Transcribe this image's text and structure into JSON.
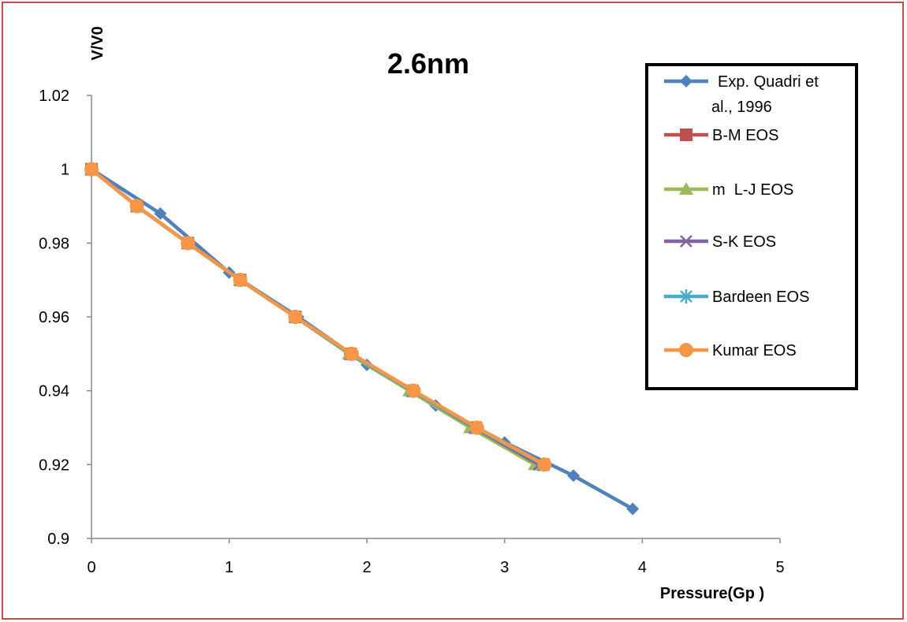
{
  "chart_data": {
    "type": "line",
    "title": "2.6nm",
    "xlabel": "Pressure(Gp )",
    "ylabel": "V/V0",
    "xlim": [
      0,
      5
    ],
    "ylim": [
      0.9,
      1.02
    ],
    "x_ticks": [
      "0",
      "1",
      "2",
      "3",
      "4",
      "5"
    ],
    "y_ticks": [
      "0.9",
      "0.92",
      "0.94",
      "0.96",
      "0.98",
      "1",
      "1.02"
    ],
    "grid": false,
    "legend_position": "right",
    "series": [
      {
        "name": "Exp. Quadri et al., 1996",
        "legend_lines": [
          "Exp. Quadri et",
          "al., 1996"
        ],
        "color": "#4f81bd",
        "marker": "diamond",
        "x": [
          0,
          0.5,
          1.0,
          1.5,
          2.0,
          2.5,
          3.0,
          3.5,
          3.93
        ],
        "y": [
          1.0,
          0.988,
          0.972,
          0.96,
          0.947,
          0.936,
          0.926,
          0.917,
          0.908
        ]
      },
      {
        "name": "B-M EOS",
        "color": "#c0504d",
        "marker": "square",
        "x": [
          0,
          0.33,
          0.7,
          1.08,
          1.48,
          1.88,
          2.33,
          2.79,
          3.28
        ],
        "y": [
          1.0,
          0.99,
          0.98,
          0.97,
          0.96,
          0.95,
          0.94,
          0.93,
          0.92
        ]
      },
      {
        "name": "m L-J EOS",
        "legend_label": "m  L-J EOS",
        "color": "#9bbb59",
        "marker": "triangle",
        "x": [
          0,
          0.33,
          0.7,
          1.08,
          1.48,
          1.87,
          2.31,
          2.75,
          3.22
        ],
        "y": [
          1.0,
          0.99,
          0.98,
          0.97,
          0.96,
          0.95,
          0.94,
          0.93,
          0.92
        ]
      },
      {
        "name": "S-K EOS",
        "color": "#8064a2",
        "marker": "x",
        "x": [
          0,
          0.33,
          0.7,
          1.08,
          1.48,
          1.88,
          2.33,
          2.78,
          3.25
        ],
        "y": [
          1.0,
          0.99,
          0.98,
          0.97,
          0.96,
          0.95,
          0.94,
          0.93,
          0.92
        ]
      },
      {
        "name": "Bardeen EOS",
        "color": "#4bacc6",
        "marker": "star",
        "x": [
          0,
          0.33,
          0.7,
          1.08,
          1.48,
          1.88,
          2.33,
          2.79,
          3.28
        ],
        "y": [
          1.0,
          0.99,
          0.98,
          0.97,
          0.96,
          0.95,
          0.94,
          0.93,
          0.92
        ]
      },
      {
        "name": "Kumar EOS",
        "color": "#f79646",
        "marker": "circle",
        "x": [
          0,
          0.33,
          0.7,
          1.08,
          1.48,
          1.89,
          2.34,
          2.8,
          3.29
        ],
        "y": [
          1.0,
          0.99,
          0.98,
          0.97,
          0.96,
          0.95,
          0.94,
          0.93,
          0.92
        ]
      }
    ]
  }
}
